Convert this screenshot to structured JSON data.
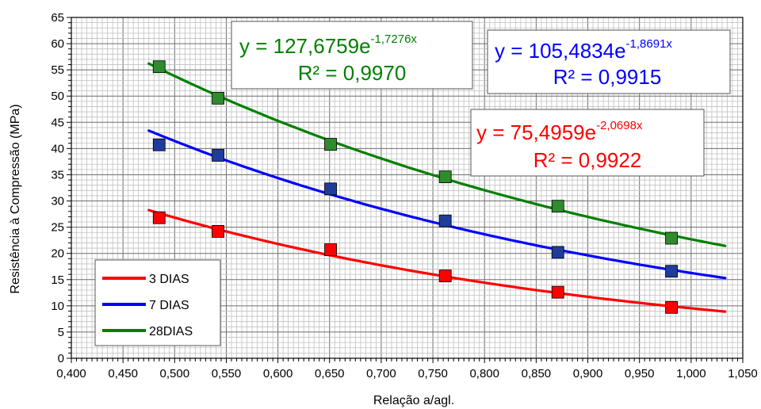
{
  "chart_data": {
    "type": "scatter",
    "xlabel": "Relação a/agl.",
    "ylabel": "Resistência à Compressão (MPa)",
    "xlim": [
      0.4,
      1.05
    ],
    "ylim": [
      0,
      65
    ],
    "x_ticks": [
      "0,400",
      "0,450",
      "0,500",
      "0,550",
      "0,600",
      "0,650",
      "0,700",
      "0,750",
      "0,800",
      "0,850",
      "0,900",
      "0,950",
      "1,000",
      "1,050"
    ],
    "y_ticks": [
      "0",
      "5",
      "10",
      "15",
      "20",
      "25",
      "30",
      "35",
      "40",
      "45",
      "50",
      "55",
      "60",
      "65"
    ],
    "grid": true,
    "legend_position": "bottom-left",
    "series": [
      {
        "name": "3 DIAS",
        "color": "#ff0000",
        "marker_fill": "#ff0000",
        "x": [
          0.485,
          0.542,
          0.651,
          0.762,
          0.871,
          0.981
        ],
        "y": [
          26.8,
          24.2,
          20.7,
          15.7,
          12.6,
          9.7
        ],
        "fit": {
          "a": 75.4959,
          "b": -2.0698,
          "x_range": [
            0.475,
            1.033
          ]
        },
        "equation_base": "y = 75,4959e",
        "equation_exp": "-2,0698x",
        "r2": "R² = 0,9922"
      },
      {
        "name": "7 DIAS",
        "color": "#0000ff",
        "marker_fill": "#1f3c99",
        "x": [
          0.485,
          0.542,
          0.651,
          0.762,
          0.871,
          0.981
        ],
        "y": [
          40.7,
          38.7,
          32.3,
          26.2,
          20.2,
          16.6
        ],
        "fit": {
          "a": 105.4834,
          "b": -1.8691,
          "x_range": [
            0.475,
            1.033
          ]
        },
        "equation_base": "y = 105,4834e",
        "equation_exp": "-1,8691x",
        "r2": "R² = 0,9915"
      },
      {
        "name": "28DIAS",
        "color": "#008000",
        "marker_fill": "#2e8b2e",
        "x": [
          0.485,
          0.542,
          0.651,
          0.762,
          0.871,
          0.981
        ],
        "y": [
          55.6,
          49.6,
          40.8,
          34.6,
          29.0,
          22.9
        ],
        "fit": {
          "a": 127.6759,
          "b": -1.7276,
          "x_range": [
            0.475,
            1.033
          ]
        },
        "equation_base": "y = 127,6759e",
        "equation_exp": "-1,7276x",
        "r2": "R² = 0,9970"
      }
    ]
  }
}
